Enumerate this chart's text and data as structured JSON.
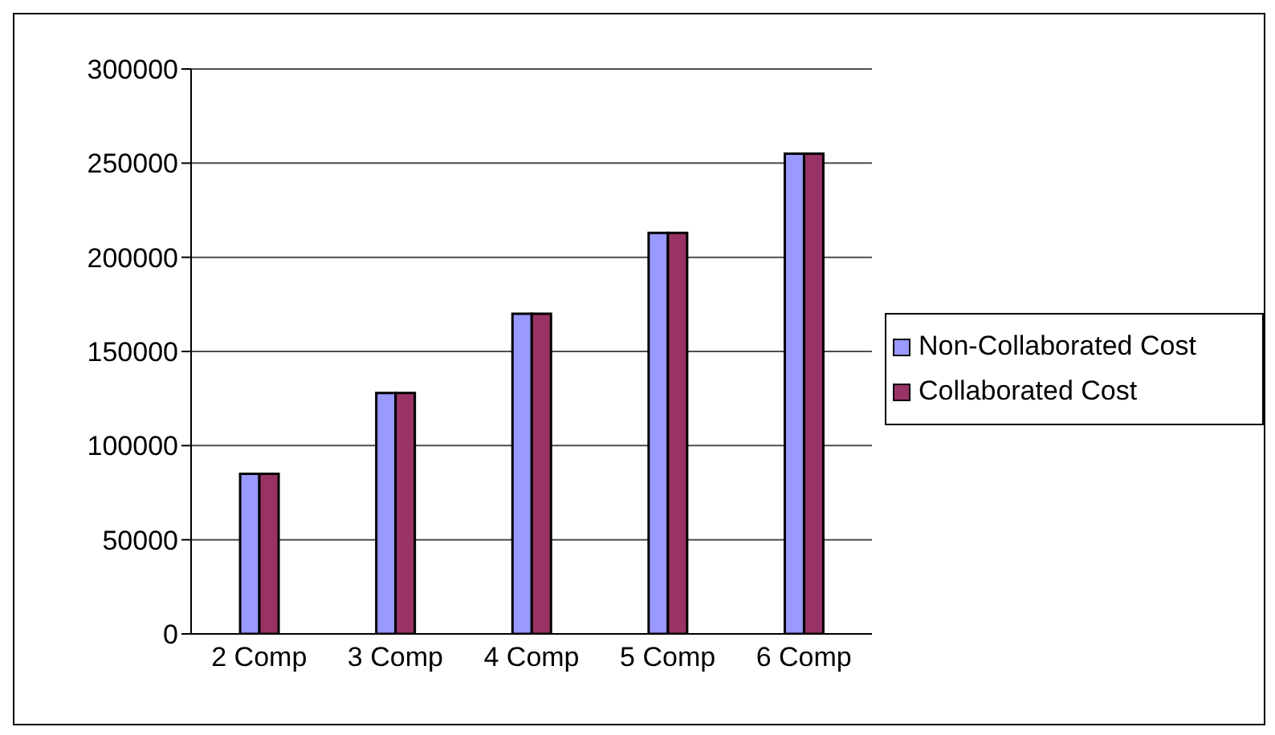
{
  "chart_data": {
    "type": "bar",
    "categories": [
      "2 Comp",
      "3 Comp",
      "4 Comp",
      "5 Comp",
      "6 Comp"
    ],
    "series": [
      {
        "name": "Non-Collaborated Cost",
        "color": "#9999ff",
        "values": [
          85000,
          128000,
          170000,
          213000,
          255000
        ]
      },
      {
        "name": "Collaborated Cost",
        "color": "#993366",
        "values": [
          85000,
          128000,
          170000,
          213000,
          255000
        ]
      }
    ],
    "ylim": [
      0,
      300000
    ],
    "yticks": [
      0,
      50000,
      100000,
      150000,
      200000,
      250000,
      300000
    ],
    "grid": "y",
    "legend": "right"
  }
}
